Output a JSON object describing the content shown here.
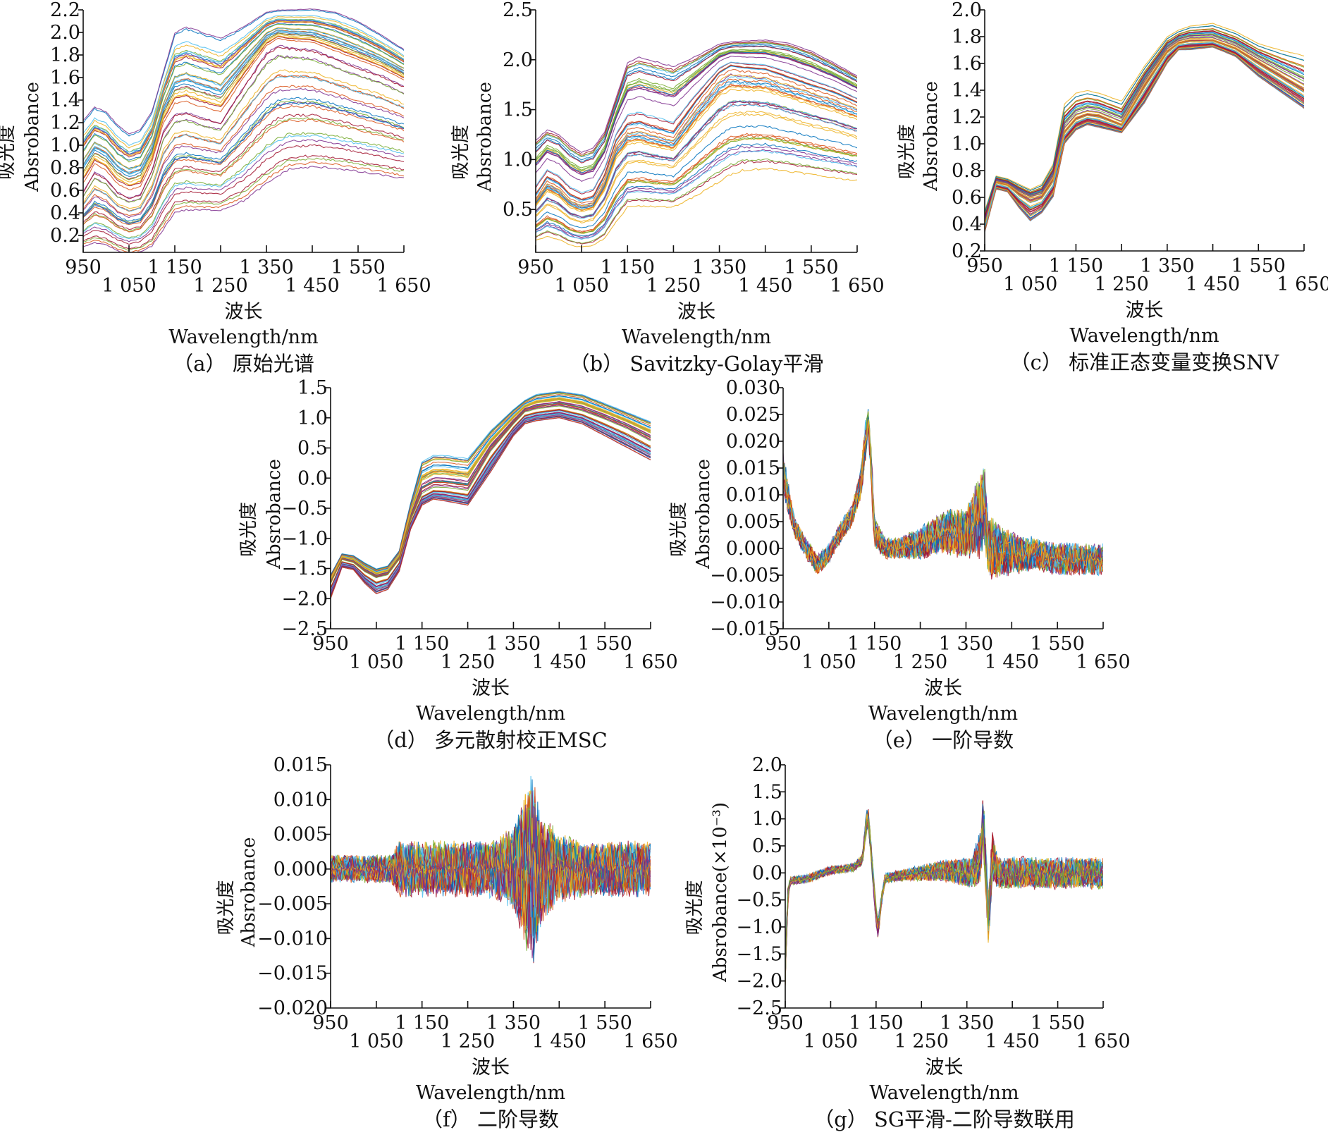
{
  "palette": [
    "#0072BD",
    "#D95319",
    "#EDB120",
    "#7E2F8E",
    "#77AC30",
    "#4DBEEE",
    "#A2142F"
  ],
  "chart_data": [
    {
      "id": "a",
      "type": "line",
      "caption": "（a） 原始光谱",
      "ylabel_cn": "吸光度",
      "ylabel_en": "Absrobance",
      "xlabel_cn": "波长",
      "xlabel_en": "Wavelength/nm",
      "xlim": [
        950,
        1650
      ],
      "ylim": [
        0.05,
        2.2
      ],
      "xticks": [
        950,
        1050,
        1150,
        1250,
        1350,
        1450,
        1550,
        1650
      ],
      "xtick_labels": [
        "950",
        "1 050",
        "1 150",
        "1 250",
        "1 350",
        "1 450",
        "1 550",
        "1 650"
      ],
      "yticks": [
        0.2,
        0.4,
        0.6,
        0.8,
        1.0,
        1.2,
        1.4,
        1.6,
        1.8,
        2.0,
        2.2
      ],
      "ytick_labels": [
        "0.2",
        "0.4",
        "0.6",
        "0.8",
        "1.0",
        "1.2",
        "1.4",
        "1.6",
        "1.8",
        "2.0",
        "2.2"
      ],
      "noisy": false,
      "x": [
        950,
        975,
        1000,
        1025,
        1050,
        1075,
        1100,
        1125,
        1150,
        1175,
        1200,
        1250,
        1300,
        1350,
        1375,
        1400,
        1450,
        1500,
        1550,
        1600,
        1650
      ],
      "median": [
        0.6,
        0.78,
        0.72,
        0.6,
        0.55,
        0.58,
        0.8,
        1.15,
        1.3,
        1.32,
        1.28,
        1.22,
        1.55,
        1.85,
        1.92,
        1.9,
        1.88,
        1.8,
        1.72,
        1.65,
        1.55
      ],
      "upper": [
        1.22,
        1.34,
        1.3,
        1.18,
        1.1,
        1.14,
        1.3,
        1.65,
        2.0,
        2.05,
        2.02,
        1.95,
        2.05,
        2.18,
        2.2,
        2.2,
        2.21,
        2.18,
        2.1,
        1.98,
        1.85
      ],
      "lower": [
        0.1,
        0.13,
        0.11,
        0.06,
        0.03,
        0.05,
        0.1,
        0.25,
        0.4,
        0.42,
        0.42,
        0.42,
        0.5,
        0.65,
        0.72,
        0.78,
        0.8,
        0.79,
        0.76,
        0.73,
        0.7
      ]
    },
    {
      "id": "b",
      "type": "line",
      "caption": "（b） Savitzky-Golay平滑",
      "ylabel_cn": "吸光度",
      "ylabel_en": "Absrobance",
      "xlabel_cn": "波长",
      "xlabel_en": "Wavelength/nm",
      "xlim": [
        950,
        1650
      ],
      "ylim": [
        0.07,
        2.5
      ],
      "xticks": [
        950,
        1050,
        1150,
        1250,
        1350,
        1450,
        1550,
        1650
      ],
      "xtick_labels": [
        "950",
        "1 050",
        "1 150",
        "1 250",
        "1 350",
        "1 450",
        "1 550",
        "1 650"
      ],
      "yticks": [
        0.5,
        1.0,
        1.5,
        2.0,
        2.5
      ],
      "ytick_labels": [
        "0.5",
        "1.0",
        "1.5",
        "2.0",
        "2.5"
      ],
      "noisy": false,
      "x": [
        950,
        975,
        1000,
        1025,
        1050,
        1075,
        1100,
        1125,
        1150,
        1175,
        1200,
        1250,
        1300,
        1350,
        1375,
        1400,
        1450,
        1500,
        1550,
        1600,
        1650
      ],
      "median": [
        0.62,
        0.8,
        0.74,
        0.62,
        0.57,
        0.6,
        0.82,
        1.17,
        1.32,
        1.34,
        1.3,
        1.24,
        1.57,
        1.86,
        1.93,
        1.91,
        1.89,
        1.81,
        1.73,
        1.66,
        1.56
      ],
      "upper": [
        1.2,
        1.3,
        1.26,
        1.15,
        1.08,
        1.12,
        1.28,
        1.62,
        1.98,
        2.03,
        2.0,
        1.94,
        2.04,
        2.16,
        2.18,
        2.19,
        2.2,
        2.17,
        2.09,
        1.97,
        1.84
      ],
      "lower": [
        0.15,
        0.18,
        0.15,
        0.1,
        0.08,
        0.1,
        0.15,
        0.3,
        0.45,
        0.46,
        0.46,
        0.46,
        0.55,
        0.68,
        0.75,
        0.8,
        0.82,
        0.8,
        0.77,
        0.74,
        0.72
      ]
    },
    {
      "id": "c",
      "type": "line",
      "caption": "（c） 标准正态变量变换SNV",
      "ylabel_cn": "吸光度",
      "ylabel_en": "Absrobance",
      "xlabel_cn": "波长",
      "xlabel_en": "Wavelength/nm",
      "xlim": [
        950,
        1650
      ],
      "ylim": [
        0.2,
        2.0
      ],
      "xticks": [
        950,
        1050,
        1150,
        1250,
        1350,
        1450,
        1550,
        1650
      ],
      "xtick_labels": [
        "950",
        "1 050",
        "1 150",
        "1 250",
        "1 350",
        "1 450",
        "1 550",
        "1 650"
      ],
      "yticks": [
        0.2,
        0.4,
        0.6,
        0.8,
        1.0,
        1.2,
        1.4,
        1.6,
        1.8,
        2.0
      ],
      "ytick_labels": [
        "0.2",
        "0.4",
        "0.6",
        "0.8",
        "1.0",
        "1.2",
        "1.4",
        "1.6",
        "1.8",
        "2.0"
      ],
      "noisy": false,
      "x": [
        950,
        975,
        1000,
        1025,
        1050,
        1075,
        1100,
        1125,
        1150,
        1175,
        1200,
        1250,
        1300,
        1350,
        1375,
        1400,
        1450,
        1500,
        1550,
        1600,
        1650
      ],
      "median": [
        0.4,
        0.72,
        0.7,
        0.64,
        0.6,
        0.62,
        0.75,
        1.1,
        1.2,
        1.23,
        1.22,
        1.15,
        1.45,
        1.7,
        1.76,
        1.78,
        1.78,
        1.72,
        1.62,
        1.52,
        1.42
      ],
      "upper": [
        0.5,
        0.76,
        0.74,
        0.7,
        0.66,
        0.7,
        0.85,
        1.3,
        1.38,
        1.4,
        1.38,
        1.32,
        1.58,
        1.8,
        1.85,
        1.88,
        1.9,
        1.84,
        1.75,
        1.7,
        1.66
      ],
      "lower": [
        0.34,
        0.66,
        0.64,
        0.52,
        0.42,
        0.48,
        0.6,
        1.0,
        1.1,
        1.14,
        1.12,
        1.08,
        1.3,
        1.6,
        1.7,
        1.7,
        1.72,
        1.65,
        1.5,
        1.38,
        1.26
      ]
    },
    {
      "id": "d",
      "type": "line",
      "caption": "（d） 多元散射校正MSC",
      "ylabel_cn": "吸光度",
      "ylabel_en": "Absrobance",
      "xlabel_cn": "波长",
      "xlabel_en": "Wavelength/nm",
      "xlim": [
        950,
        1650
      ],
      "ylim": [
        -2.5,
        1.5
      ],
      "xticks": [
        950,
        1050,
        1150,
        1250,
        1350,
        1450,
        1550,
        1650
      ],
      "xtick_labels": [
        "950",
        "1 050",
        "1 150",
        "1 250",
        "1 350",
        "1 450",
        "1 550",
        "1 650"
      ],
      "yticks": [
        -2.5,
        -2.0,
        -1.5,
        -1.0,
        -0.5,
        0.0,
        0.5,
        1.0,
        1.5
      ],
      "ytick_labels": [
        "−2.5",
        "−2.0",
        "−1.5",
        "−1.0",
        "−0.5",
        "0.0",
        "0.5",
        "1.0",
        "1.5"
      ],
      "noisy": false,
      "x": [
        950,
        975,
        1000,
        1025,
        1050,
        1075,
        1100,
        1125,
        1150,
        1175,
        1200,
        1250,
        1300,
        1350,
        1375,
        1400,
        1450,
        1500,
        1550,
        1600,
        1650
      ],
      "median": [
        -1.75,
        -1.35,
        -1.4,
        -1.55,
        -1.65,
        -1.6,
        -1.35,
        -0.7,
        -0.25,
        -0.15,
        -0.15,
        -0.2,
        0.45,
        0.9,
        1.1,
        1.15,
        1.2,
        1.12,
        0.98,
        0.82,
        0.62
      ],
      "upper": [
        -1.6,
        -1.25,
        -1.28,
        -1.4,
        -1.5,
        -1.45,
        -1.2,
        -0.4,
        0.3,
        0.4,
        0.4,
        0.35,
        0.8,
        1.15,
        1.3,
        1.4,
        1.45,
        1.4,
        1.25,
        1.1,
        0.95
      ],
      "lower": [
        -2.0,
        -1.48,
        -1.52,
        -1.75,
        -1.92,
        -1.85,
        -1.55,
        -0.85,
        -0.45,
        -0.35,
        -0.38,
        -0.45,
        0.1,
        0.7,
        0.9,
        0.95,
        1.0,
        0.9,
        0.7,
        0.5,
        0.3
      ]
    },
    {
      "id": "e",
      "type": "line",
      "caption": "（e） 一阶导数",
      "ylabel_cn": "吸光度",
      "ylabel_en": "Absrobance",
      "xlabel_cn": "波长",
      "xlabel_en": "Wavelength/nm",
      "xlim": [
        950,
        1650
      ],
      "ylim": [
        -0.015,
        0.03
      ],
      "xticks": [
        950,
        1050,
        1150,
        1250,
        1350,
        1450,
        1550,
        1650
      ],
      "xtick_labels": [
        "950",
        "1 050",
        "1 150",
        "1 250",
        "1 350",
        "1 450",
        "1 550",
        "1 650"
      ],
      "yticks": [
        -0.015,
        -0.01,
        -0.005,
        0.0,
        0.005,
        0.01,
        0.015,
        0.02,
        0.025,
        0.03
      ],
      "ytick_labels": [
        "−0.015",
        "−0.010",
        "−0.005",
        "0.000",
        "0.005",
        "0.010",
        "0.015",
        "0.020",
        "0.025",
        "0.030"
      ],
      "noisy": true,
      "x": [
        950,
        975,
        1000,
        1025,
        1050,
        1075,
        1100,
        1120,
        1130,
        1136,
        1142,
        1150,
        1175,
        1200,
        1250,
        1300,
        1350,
        1380,
        1390,
        1400,
        1450,
        1500,
        1550,
        1600,
        1650
      ],
      "median": [
        0.014,
        0.004,
        0.0,
        -0.003,
        -0.001,
        0.003,
        0.006,
        0.012,
        0.02,
        0.024,
        0.016,
        0.003,
        0.0,
        0.0,
        0.001,
        0.003,
        0.003,
        0.006,
        0.008,
        0.0,
        -0.001,
        -0.001,
        -0.002,
        -0.002,
        -0.002
      ],
      "spread": [
        0.004,
        0.002,
        0.002,
        0.002,
        0.002,
        0.002,
        0.002,
        0.003,
        0.004,
        0.002,
        0.004,
        0.003,
        0.002,
        0.002,
        0.003,
        0.004,
        0.005,
        0.008,
        0.008,
        0.006,
        0.004,
        0.003,
        0.003,
        0.003,
        0.003
      ]
    },
    {
      "id": "f",
      "type": "line",
      "caption": "（f） 二阶导数",
      "ylabel_cn": "吸光度",
      "ylabel_en": "Absrobance",
      "xlabel_cn": "波长",
      "xlabel_en": "Wavelength/nm",
      "xlim": [
        950,
        1650
      ],
      "ylim": [
        -0.02,
        0.015
      ],
      "xticks": [
        950,
        1050,
        1150,
        1250,
        1350,
        1450,
        1550,
        1650
      ],
      "xtick_labels": [
        "950",
        "1 050",
        "1 150",
        "1 250",
        "1 350",
        "1 450",
        "1 550",
        "1 650"
      ],
      "yticks": [
        -0.02,
        -0.015,
        -0.01,
        -0.005,
        0.0,
        0.005,
        0.01,
        0.015
      ],
      "ytick_labels": [
        "−0.020",
        "−0.015",
        "−0.010",
        "−0.005",
        "0.000",
        "0.005",
        "0.010",
        "0.015"
      ],
      "noisy": true,
      "x": [
        950,
        1000,
        1050,
        1080,
        1100,
        1200,
        1300,
        1350,
        1370,
        1380,
        1390,
        1400,
        1410,
        1450,
        1500,
        1550,
        1600,
        1650
      ],
      "median": [
        0,
        0,
        0,
        0,
        0,
        0,
        0,
        0,
        0,
        0,
        0,
        0,
        0,
        0,
        0,
        0,
        0,
        0
      ],
      "spread": [
        0.002,
        0.002,
        0.002,
        0.002,
        0.004,
        0.004,
        0.004,
        0.006,
        0.01,
        0.012,
        0.014,
        0.012,
        0.008,
        0.005,
        0.004,
        0.004,
        0.004,
        0.004
      ]
    },
    {
      "id": "g",
      "type": "line",
      "caption": "（g） SG平滑-二阶导数联用",
      "ylabel_cn": "吸光度",
      "ylabel_en": "Absrobance(×10⁻³)",
      "xlabel_cn": "波长",
      "xlabel_en": "Wavelength/nm",
      "xlim": [
        950,
        1650
      ],
      "ylim": [
        -2.5,
        2.0
      ],
      "xticks": [
        950,
        1050,
        1150,
        1250,
        1350,
        1450,
        1550,
        1650
      ],
      "xtick_labels": [
        "950",
        "1 050",
        "1 150",
        "1 250",
        "1 350",
        "1 450",
        "1 550",
        "1 650"
      ],
      "yticks": [
        -2.5,
        -2.0,
        -1.5,
        -1.0,
        -0.5,
        0.0,
        0.5,
        1.0,
        1.5,
        2.0
      ],
      "ytick_labels": [
        "−2.5",
        "−2.0",
        "−1.5",
        "−1.0",
        "−0.5",
        "0.0",
        "0.5",
        "1.0",
        "1.5",
        "2.0"
      ],
      "noisy": true,
      "x": [
        950,
        955,
        960,
        1000,
        1050,
        1100,
        1120,
        1127,
        1132,
        1140,
        1150,
        1155,
        1160,
        1170,
        1200,
        1300,
        1360,
        1380,
        1386,
        1392,
        1398,
        1405,
        1420,
        1450,
        1650
      ],
      "median": [
        -1.8,
        -0.5,
        -0.15,
        -0.1,
        0.05,
        0.1,
        0.25,
        0.8,
        1.1,
        0.3,
        -0.8,
        -1.05,
        -0.6,
        -0.1,
        -0.05,
        0.05,
        0.0,
        0.3,
        1.0,
        0.0,
        -0.9,
        0.3,
        0.0,
        0.0,
        0.0
      ],
      "spread": [
        0.3,
        0.2,
        0.08,
        0.08,
        0.08,
        0.08,
        0.1,
        0.2,
        0.2,
        0.2,
        0.2,
        0.2,
        0.15,
        0.1,
        0.1,
        0.2,
        0.3,
        0.5,
        0.6,
        0.6,
        0.6,
        0.5,
        0.3,
        0.3,
        0.3
      ]
    }
  ]
}
